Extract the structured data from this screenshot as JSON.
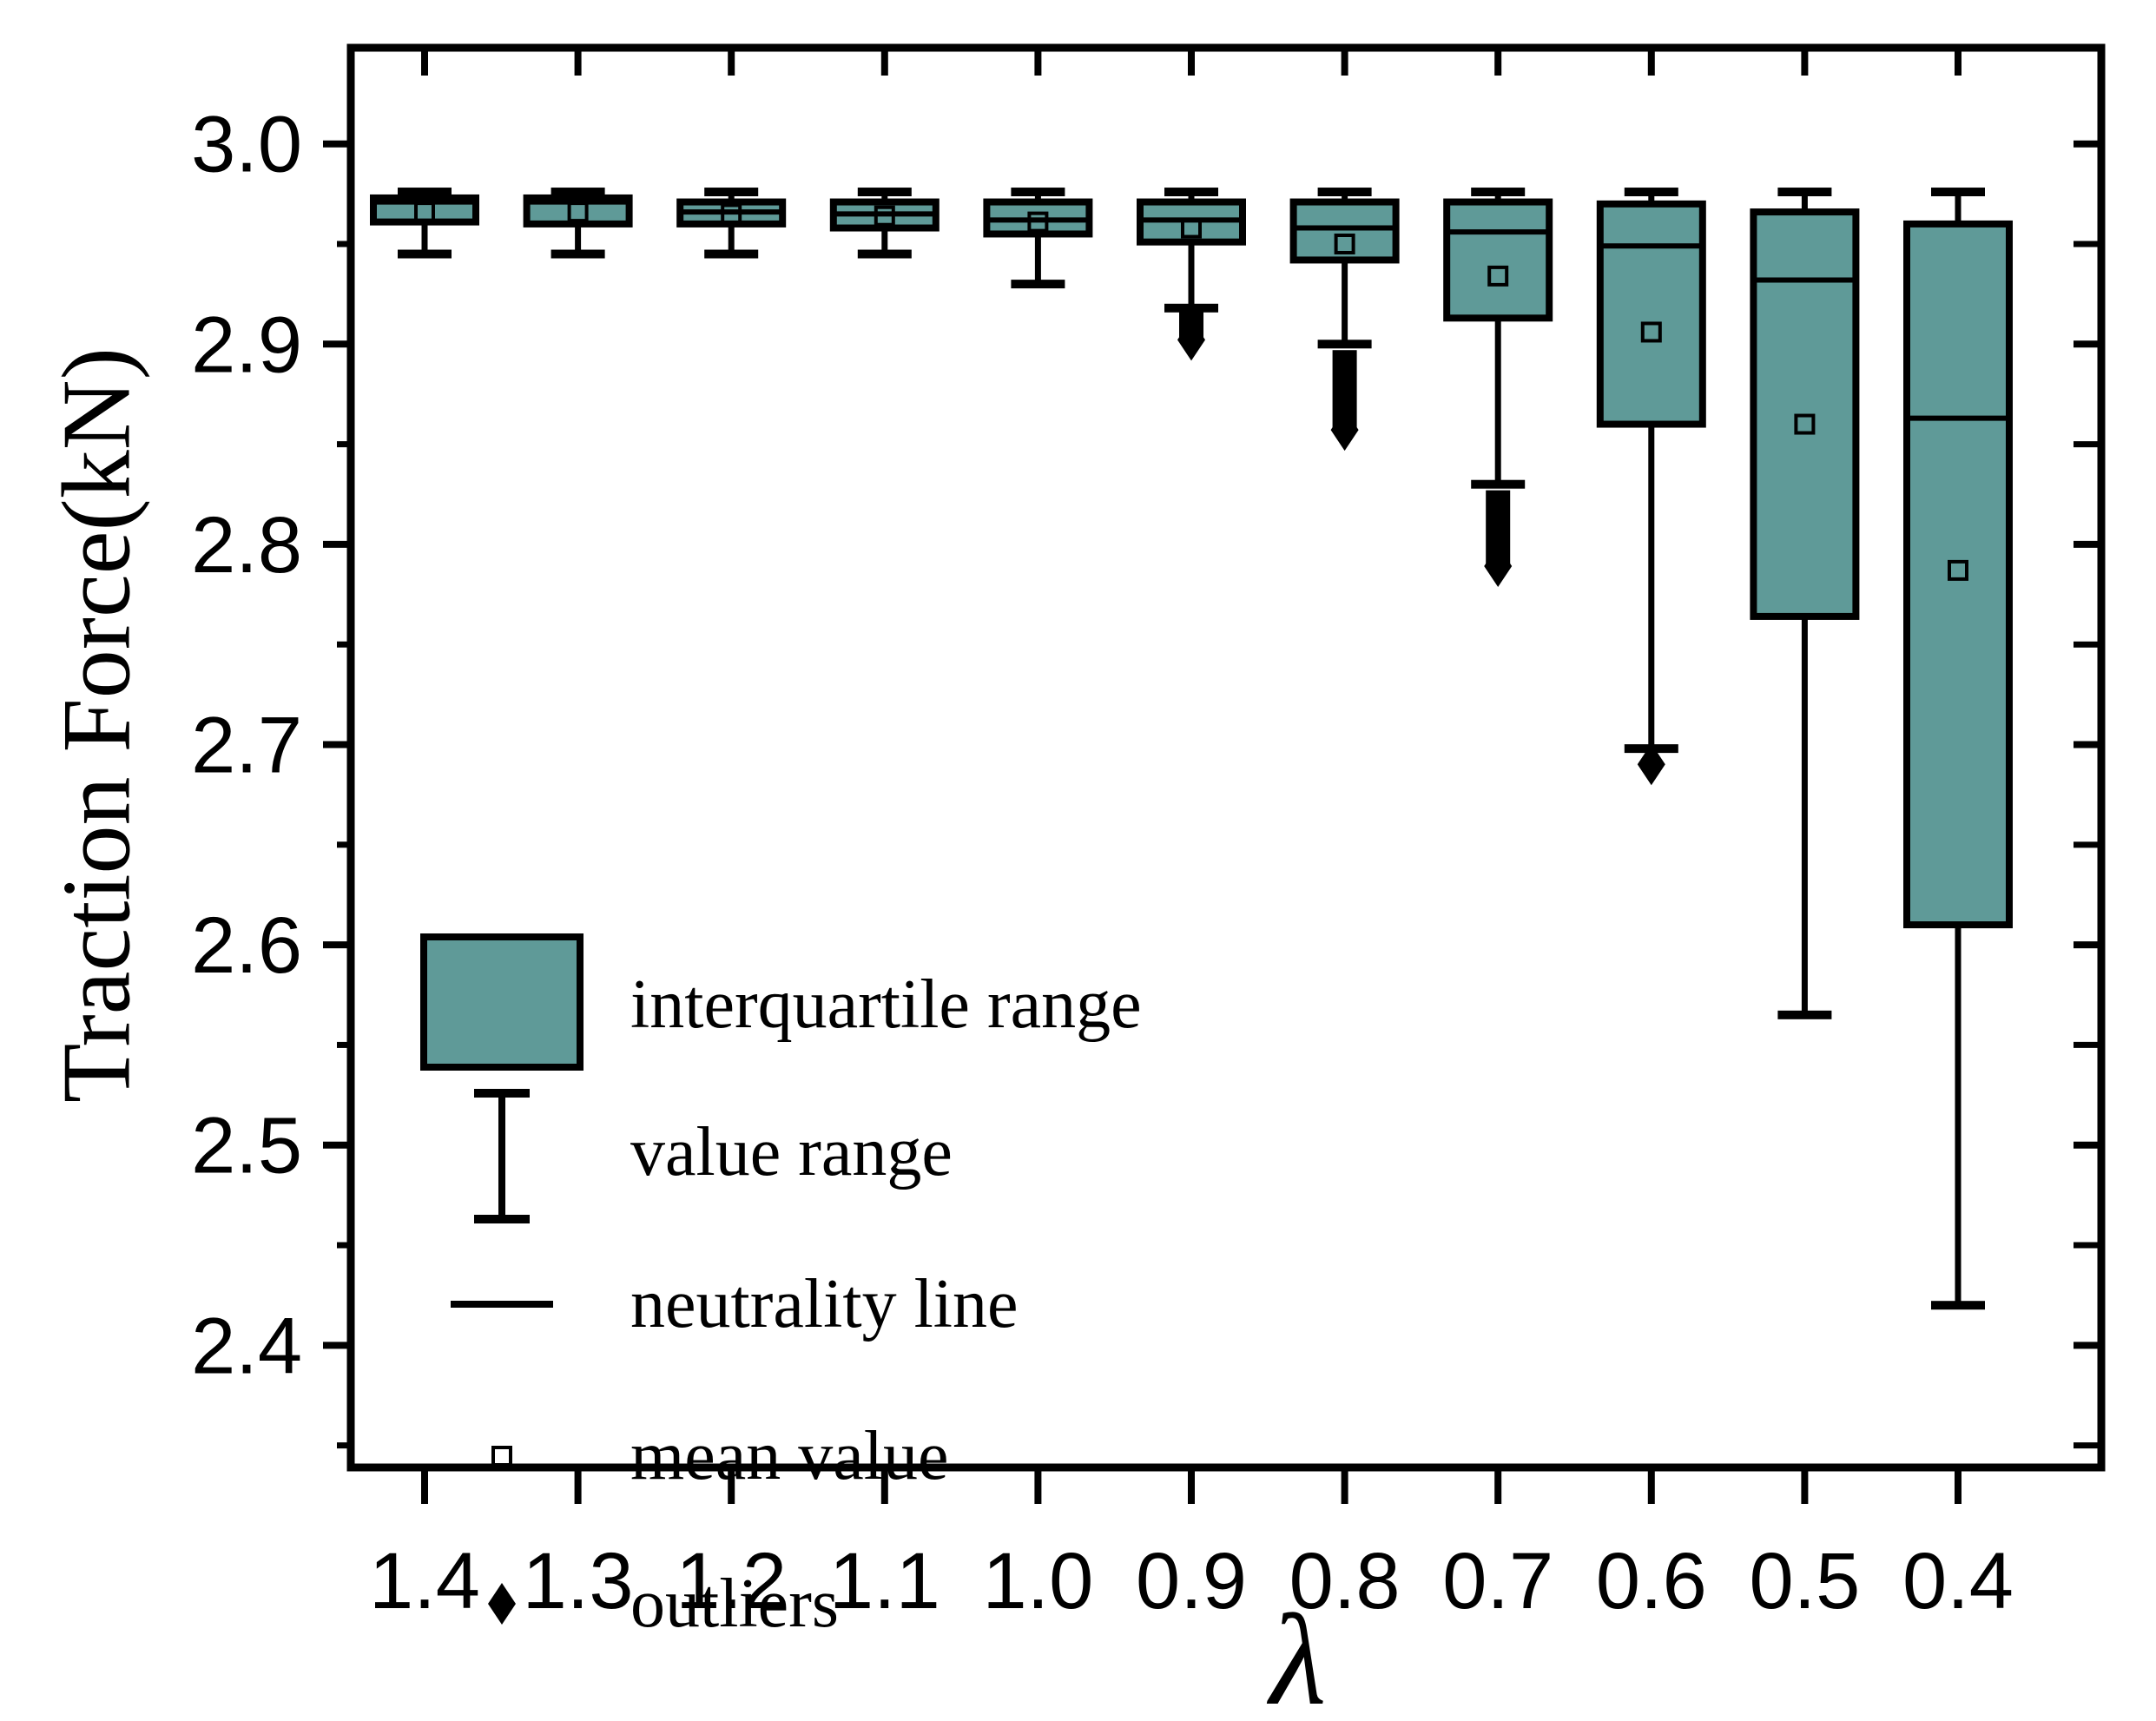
{
  "chart_data": {
    "type": "box",
    "title": "",
    "xlabel": "λ",
    "ylabel": "Traction Force(kN)",
    "categories": [
      "1.4",
      "1.3",
      "1.2",
      "1.1",
      "1.0",
      "0.9",
      "0.8",
      "0.7",
      "0.6",
      "0.5",
      "0.4"
    ],
    "ylim": [
      2.339,
      3.048
    ],
    "yticks": [
      3.0,
      2.9,
      2.8,
      2.7,
      2.6,
      2.5,
      2.4
    ],
    "ytick_labels": [
      "3.0",
      "2.9",
      "2.8",
      "2.7",
      "2.6",
      "2.5",
      "2.4"
    ],
    "minor_tick_step": 0.05,
    "grid": false,
    "legend_position": "inside lower-left",
    "colors": {
      "box_fill": "#5f9a98",
      "stroke": "#000000",
      "background": "#ffffff"
    },
    "legend": {
      "items": [
        {
          "symbol": "box-swatch",
          "label": "interquartile range"
        },
        {
          "symbol": "error-bar",
          "label": "value range"
        },
        {
          "symbol": "horizontal-line",
          "label": "neutrality line"
        },
        {
          "symbol": "open-square",
          "label": "mean value"
        },
        {
          "symbol": "filled-diamond",
          "label": "outliers"
        }
      ]
    },
    "series": [
      {
        "lambda": "1.4",
        "min": 2.945,
        "q1": 2.961,
        "median": 2.971,
        "mean": 2.966,
        "q3": 2.973,
        "max": 2.976,
        "outliers": null
      },
      {
        "lambda": "1.3",
        "min": 2.945,
        "q1": 2.96,
        "median": 2.971,
        "mean": 2.966,
        "q3": 2.973,
        "max": 2.976,
        "outliers": null
      },
      {
        "lambda": "1.2",
        "min": 2.945,
        "q1": 2.96,
        "median": 2.966,
        "mean": 2.965,
        "q3": 2.971,
        "max": 2.976,
        "outliers": null
      },
      {
        "lambda": "1.1",
        "min": 2.945,
        "q1": 2.958,
        "median": 2.965,
        "mean": 2.964,
        "q3": 2.971,
        "max": 2.976,
        "outliers": null
      },
      {
        "lambda": "1.0",
        "min": 2.93,
        "q1": 2.955,
        "median": 2.962,
        "mean": 2.961,
        "q3": 2.971,
        "max": 2.976,
        "outliers": null
      },
      {
        "lambda": "0.9",
        "min": 2.918,
        "q1": 2.951,
        "median": 2.962,
        "mean": 2.958,
        "q3": 2.971,
        "max": 2.976,
        "outliers": {
          "high": 2.916,
          "low": 2.903
        }
      },
      {
        "lambda": "0.8",
        "min": 2.9,
        "q1": 2.942,
        "median": 2.958,
        "mean": 2.95,
        "q3": 2.971,
        "max": 2.976,
        "outliers": {
          "high": 2.897,
          "low": 2.858
        }
      },
      {
        "lambda": "0.7",
        "min": 2.83,
        "q1": 2.913,
        "median": 2.956,
        "mean": 2.934,
        "q3": 2.971,
        "max": 2.976,
        "outliers": {
          "high": 2.827,
          "low": 2.79
        }
      },
      {
        "lambda": "0.6",
        "min": 2.698,
        "q1": 2.86,
        "median": 2.949,
        "mean": 2.906,
        "q3": 2.97,
        "max": 2.976,
        "outliers": {
          "high": 2.695,
          "low": 2.691
        }
      },
      {
        "lambda": "0.5",
        "min": 2.565,
        "q1": 2.764,
        "median": 2.932,
        "mean": 2.86,
        "q3": 2.966,
        "max": 2.976,
        "outliers": null
      },
      {
        "lambda": "0.4",
        "min": 2.42,
        "q1": 2.61,
        "median": 2.863,
        "mean": 2.787,
        "q3": 2.96,
        "max": 2.976,
        "outliers": null
      }
    ]
  }
}
